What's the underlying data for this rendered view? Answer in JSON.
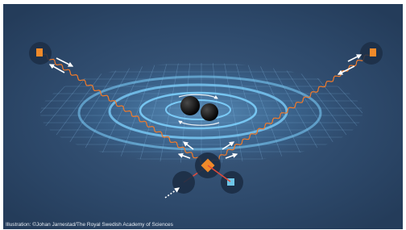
{
  "caption": "Illustration: ©Johan Jarnestad/The Royal Swedish Academy of Sciences"
}
